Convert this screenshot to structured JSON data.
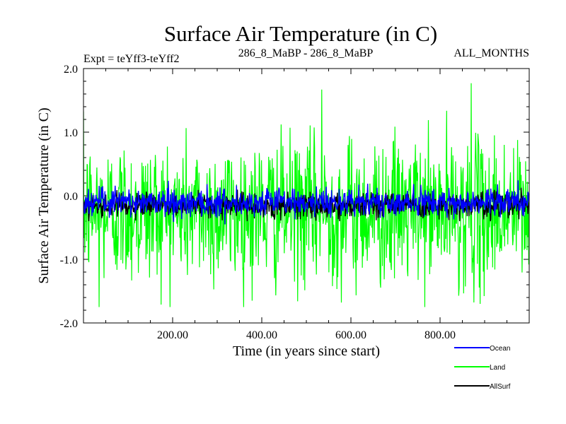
{
  "chart_data": {
    "type": "line",
    "title": "Surface Air Temperature (in C)",
    "subtitle_left": "Expt = teYff3-teYff2",
    "subtitle_center": "286_8_MaBP - 286_8_MaBP",
    "subtitle_right": "ALL_MONTHS",
    "xlabel": "Time (in years since start)",
    "ylabel": "Surface Air Temperature (in C)",
    "xlim": [
      0,
      1000
    ],
    "ylim": [
      -2.0,
      2.0
    ],
    "xticks": [
      200,
      400,
      600,
      800
    ],
    "xtick_labels": [
      "200.00",
      "400.00",
      "600.00",
      "800.00"
    ],
    "yticks": [
      -2.0,
      -1.0,
      0.0,
      1.0,
      2.0
    ],
    "ytick_labels": [
      "-2.0",
      "-1.0",
      "0.0",
      "1.0",
      "2.0"
    ],
    "grid": false,
    "legend_position": "bottom-right",
    "series": [
      {
        "name": "Land",
        "color": "#00ff00",
        "mean": -0.25,
        "range": [
          -1.75,
          1.77
        ],
        "n_points": 1000,
        "notable_extremes": [
          {
            "x": 35,
            "y": -1.75
          },
          {
            "x": 535,
            "y": 1.67
          },
          {
            "x": 870,
            "y": 1.77
          },
          {
            "x": 890,
            "y": -1.7
          }
        ]
      },
      {
        "name": "Ocean",
        "color": "#0000ff",
        "mean": -0.1,
        "range": [
          -0.45,
          0.25
        ],
        "n_points": 1000
      },
      {
        "name": "AllSurf",
        "color": "#000000",
        "mean": -0.15,
        "range": [
          -0.4,
          0.2
        ],
        "n_points": 1000
      }
    ]
  }
}
